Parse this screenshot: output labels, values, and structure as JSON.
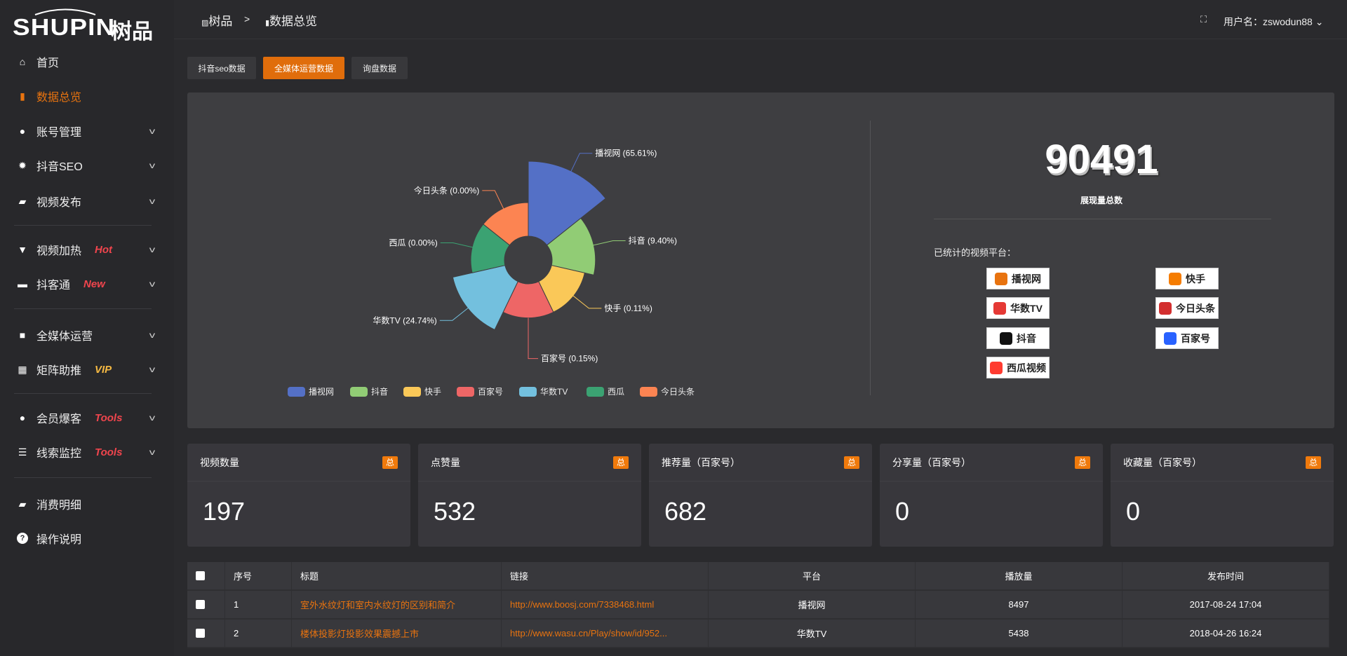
{
  "brand": {
    "logo_text": "SHUPIN",
    "logo_cn": "树品"
  },
  "header": {
    "crumb_root": "树品",
    "crumb_sep": ">",
    "crumb_current": "数据总览",
    "user_label": "用户名：zswodun88"
  },
  "sidebar": {
    "items": [
      {
        "label": "首页",
        "icon": "home-icon"
      },
      {
        "label": "数据总览",
        "icon": "bar-chart-icon",
        "active": true
      },
      {
        "label": "账号管理",
        "icon": "user-icon",
        "chevron": true
      },
      {
        "label": "抖音SEO",
        "icon": "gear-icon",
        "chevron": true
      },
      {
        "label": "视频发布",
        "icon": "camera-icon",
        "chevron": true
      },
      {
        "label": "视频加热",
        "icon": "flame-board-icon",
        "badge": "Hot",
        "badge_color": "#f0454d",
        "chevron": true
      },
      {
        "label": "抖客通",
        "icon": "chat-icon",
        "badge": "New",
        "badge_color": "#f0454d",
        "chevron": true
      },
      {
        "label": "全媒体运营",
        "icon": "monitor-icon",
        "chevron": true
      },
      {
        "label": "矩阵助推",
        "icon": "grid-icon",
        "badge": "VIP",
        "badge_color": "#f5b942",
        "chevron": true
      },
      {
        "label": "会员爆客",
        "icon": "user-icon",
        "badge": "Tools",
        "badge_color": "#f0454d",
        "chevron": true
      },
      {
        "label": "线索监控",
        "icon": "sliders-icon",
        "badge": "Tools",
        "badge_color": "#f0454d",
        "chevron": true
      },
      {
        "label": "消费明细",
        "icon": "wallet-icon"
      },
      {
        "label": "操作说明",
        "icon": "help-icon"
      }
    ]
  },
  "tabs": [
    {
      "label": "抖音seo数据"
    },
    {
      "label": "全媒体运营数据",
      "active": true
    },
    {
      "label": "询盘数据"
    }
  ],
  "summary": {
    "total": "90491",
    "total_label": "展现量总数",
    "platforms_label": "已统计的视频平台：",
    "platforms": [
      "播视网",
      "抖音",
      "快手",
      "百家号",
      "华数TV",
      "西瓜视频",
      "今日头条"
    ]
  },
  "chart_data": {
    "type": "pie",
    "rose": true,
    "legend_position": "bottom",
    "categories": [
      "播视网",
      "抖音",
      "快手",
      "百家号",
      "华数TV",
      "西瓜",
      "今日头条"
    ],
    "values": [
      65.61,
      9.4,
      0.11,
      0.15,
      24.74,
      0.0,
      0.0
    ],
    "labels": [
      "播视网 (65.61%)",
      "抖音 (9.40%)",
      "快手 (0.11%)",
      "百家号 (0.15%)",
      "华数TV (24.74%)",
      "西瓜 (0.00%)",
      "今日头条 (0.00%)"
    ],
    "colors": [
      "#5470c6",
      "#91cc75",
      "#fac858",
      "#ee6666",
      "#73c0de",
      "#3ba272",
      "#fc8452"
    ]
  },
  "stats": [
    {
      "label": "视频数量",
      "tag": "总",
      "value": "197"
    },
    {
      "label": "点赞量",
      "tag": "总",
      "value": "532"
    },
    {
      "label": "推荐量（百家号）",
      "tag": "总",
      "value": "682"
    },
    {
      "label": "分享量（百家号）",
      "tag": "总",
      "value": "0"
    },
    {
      "label": "收藏量（百家号）",
      "tag": "总",
      "value": "0"
    }
  ],
  "table": {
    "headers": [
      "序号",
      "标题",
      "链接",
      "平台",
      "播放量",
      "发布时间"
    ],
    "rows": [
      [
        "1",
        "室外水纹灯和室内水纹灯的区别和简介",
        "http://www.boosj.com/7338468.html",
        "播视网",
        "8497",
        "2017-08-24 17:04"
      ],
      [
        "2",
        "楼体投影灯投影效果震撼上市",
        "http://www.wasu.cn/Play/show/id/952...",
        "华数TV",
        "5438",
        "2018-04-26 16:24"
      ]
    ]
  },
  "accent": "#e8730f"
}
